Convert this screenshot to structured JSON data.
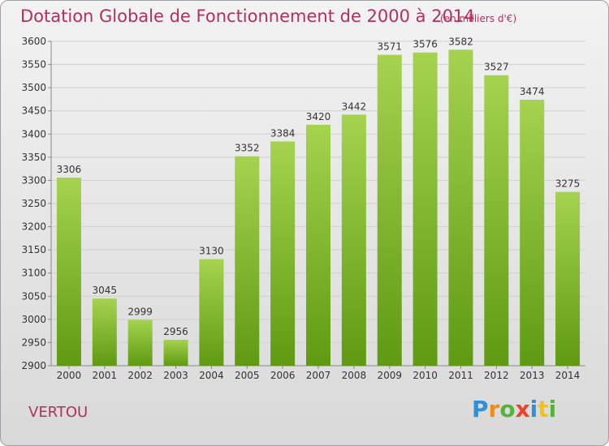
{
  "header": {
    "title": "Dotation Globale de Fonctionnement de 2000 à 2014",
    "unit": "(en milliers d'€)"
  },
  "footer": {
    "commune": "VERTOU",
    "logo": "Proxiti"
  },
  "colors": {
    "title": "#b03060",
    "bar_top": "#a5d34f",
    "bar_bottom": "#5f9a12"
  },
  "chart_data": {
    "type": "bar",
    "title": "Dotation Globale de Fonctionnement de 2000 à 2014",
    "xlabel": "",
    "ylabel": "",
    "categories": [
      "2000",
      "2001",
      "2002",
      "2003",
      "2004",
      "2005",
      "2006",
      "2007",
      "2008",
      "2009",
      "2010",
      "2011",
      "2012",
      "2013",
      "2014"
    ],
    "values": [
      3306,
      3045,
      2999,
      2956,
      3130,
      3352,
      3384,
      3420,
      3442,
      3571,
      3576,
      3582,
      3527,
      3474,
      3275
    ],
    "ylim": [
      2900,
      3600
    ],
    "yticks": [
      2900,
      2950,
      3000,
      3050,
      3100,
      3150,
      3200,
      3250,
      3300,
      3350,
      3400,
      3450,
      3500,
      3550,
      3600
    ],
    "grid": true,
    "legend": "none"
  }
}
